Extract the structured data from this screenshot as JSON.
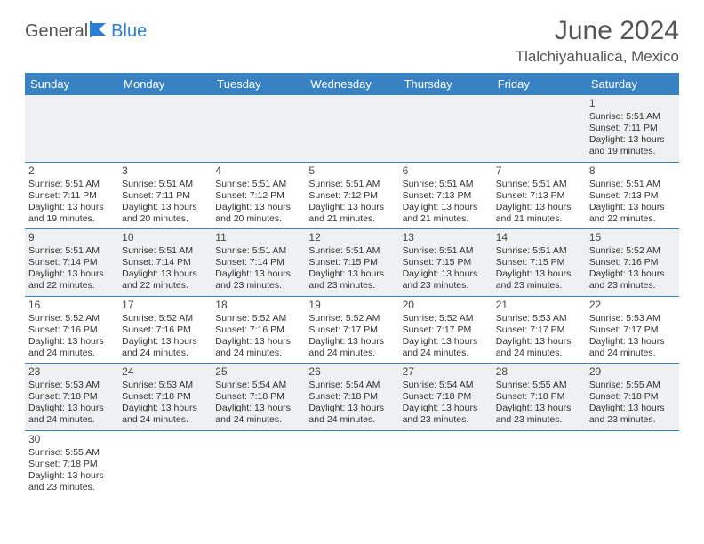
{
  "logo": {
    "part1": "General",
    "part2": "Blue"
  },
  "title": "June 2024",
  "location": "Tlalchiyahualica, Mexico",
  "colors": {
    "header_bg": "#3882c4",
    "header_text": "#ffffff",
    "row_alt_bg": "#eef0f1",
    "border": "#3882c4",
    "logo_accent": "#2a7fd4",
    "text": "#333333"
  },
  "daysOfWeek": [
    "Sunday",
    "Monday",
    "Tuesday",
    "Wednesday",
    "Thursday",
    "Friday",
    "Saturday"
  ],
  "weeks": [
    [
      null,
      null,
      null,
      null,
      null,
      null,
      {
        "n": "1",
        "sr": "Sunrise: 5:51 AM",
        "ss": "Sunset: 7:11 PM",
        "d1": "Daylight: 13 hours",
        "d2": "and 19 minutes."
      }
    ],
    [
      {
        "n": "2",
        "sr": "Sunrise: 5:51 AM",
        "ss": "Sunset: 7:11 PM",
        "d1": "Daylight: 13 hours",
        "d2": "and 19 minutes."
      },
      {
        "n": "3",
        "sr": "Sunrise: 5:51 AM",
        "ss": "Sunset: 7:11 PM",
        "d1": "Daylight: 13 hours",
        "d2": "and 20 minutes."
      },
      {
        "n": "4",
        "sr": "Sunrise: 5:51 AM",
        "ss": "Sunset: 7:12 PM",
        "d1": "Daylight: 13 hours",
        "d2": "and 20 minutes."
      },
      {
        "n": "5",
        "sr": "Sunrise: 5:51 AM",
        "ss": "Sunset: 7:12 PM",
        "d1": "Daylight: 13 hours",
        "d2": "and 21 minutes."
      },
      {
        "n": "6",
        "sr": "Sunrise: 5:51 AM",
        "ss": "Sunset: 7:13 PM",
        "d1": "Daylight: 13 hours",
        "d2": "and 21 minutes."
      },
      {
        "n": "7",
        "sr": "Sunrise: 5:51 AM",
        "ss": "Sunset: 7:13 PM",
        "d1": "Daylight: 13 hours",
        "d2": "and 21 minutes."
      },
      {
        "n": "8",
        "sr": "Sunrise: 5:51 AM",
        "ss": "Sunset: 7:13 PM",
        "d1": "Daylight: 13 hours",
        "d2": "and 22 minutes."
      }
    ],
    [
      {
        "n": "9",
        "sr": "Sunrise: 5:51 AM",
        "ss": "Sunset: 7:14 PM",
        "d1": "Daylight: 13 hours",
        "d2": "and 22 minutes."
      },
      {
        "n": "10",
        "sr": "Sunrise: 5:51 AM",
        "ss": "Sunset: 7:14 PM",
        "d1": "Daylight: 13 hours",
        "d2": "and 22 minutes."
      },
      {
        "n": "11",
        "sr": "Sunrise: 5:51 AM",
        "ss": "Sunset: 7:14 PM",
        "d1": "Daylight: 13 hours",
        "d2": "and 23 minutes."
      },
      {
        "n": "12",
        "sr": "Sunrise: 5:51 AM",
        "ss": "Sunset: 7:15 PM",
        "d1": "Daylight: 13 hours",
        "d2": "and 23 minutes."
      },
      {
        "n": "13",
        "sr": "Sunrise: 5:51 AM",
        "ss": "Sunset: 7:15 PM",
        "d1": "Daylight: 13 hours",
        "d2": "and 23 minutes."
      },
      {
        "n": "14",
        "sr": "Sunrise: 5:51 AM",
        "ss": "Sunset: 7:15 PM",
        "d1": "Daylight: 13 hours",
        "d2": "and 23 minutes."
      },
      {
        "n": "15",
        "sr": "Sunrise: 5:52 AM",
        "ss": "Sunset: 7:16 PM",
        "d1": "Daylight: 13 hours",
        "d2": "and 23 minutes."
      }
    ],
    [
      {
        "n": "16",
        "sr": "Sunrise: 5:52 AM",
        "ss": "Sunset: 7:16 PM",
        "d1": "Daylight: 13 hours",
        "d2": "and 24 minutes."
      },
      {
        "n": "17",
        "sr": "Sunrise: 5:52 AM",
        "ss": "Sunset: 7:16 PM",
        "d1": "Daylight: 13 hours",
        "d2": "and 24 minutes."
      },
      {
        "n": "18",
        "sr": "Sunrise: 5:52 AM",
        "ss": "Sunset: 7:16 PM",
        "d1": "Daylight: 13 hours",
        "d2": "and 24 minutes."
      },
      {
        "n": "19",
        "sr": "Sunrise: 5:52 AM",
        "ss": "Sunset: 7:17 PM",
        "d1": "Daylight: 13 hours",
        "d2": "and 24 minutes."
      },
      {
        "n": "20",
        "sr": "Sunrise: 5:52 AM",
        "ss": "Sunset: 7:17 PM",
        "d1": "Daylight: 13 hours",
        "d2": "and 24 minutes."
      },
      {
        "n": "21",
        "sr": "Sunrise: 5:53 AM",
        "ss": "Sunset: 7:17 PM",
        "d1": "Daylight: 13 hours",
        "d2": "and 24 minutes."
      },
      {
        "n": "22",
        "sr": "Sunrise: 5:53 AM",
        "ss": "Sunset: 7:17 PM",
        "d1": "Daylight: 13 hours",
        "d2": "and 24 minutes."
      }
    ],
    [
      {
        "n": "23",
        "sr": "Sunrise: 5:53 AM",
        "ss": "Sunset: 7:18 PM",
        "d1": "Daylight: 13 hours",
        "d2": "and 24 minutes."
      },
      {
        "n": "24",
        "sr": "Sunrise: 5:53 AM",
        "ss": "Sunset: 7:18 PM",
        "d1": "Daylight: 13 hours",
        "d2": "and 24 minutes."
      },
      {
        "n": "25",
        "sr": "Sunrise: 5:54 AM",
        "ss": "Sunset: 7:18 PM",
        "d1": "Daylight: 13 hours",
        "d2": "and 24 minutes."
      },
      {
        "n": "26",
        "sr": "Sunrise: 5:54 AM",
        "ss": "Sunset: 7:18 PM",
        "d1": "Daylight: 13 hours",
        "d2": "and 24 minutes."
      },
      {
        "n": "27",
        "sr": "Sunrise: 5:54 AM",
        "ss": "Sunset: 7:18 PM",
        "d1": "Daylight: 13 hours",
        "d2": "and 23 minutes."
      },
      {
        "n": "28",
        "sr": "Sunrise: 5:55 AM",
        "ss": "Sunset: 7:18 PM",
        "d1": "Daylight: 13 hours",
        "d2": "and 23 minutes."
      },
      {
        "n": "29",
        "sr": "Sunrise: 5:55 AM",
        "ss": "Sunset: 7:18 PM",
        "d1": "Daylight: 13 hours",
        "d2": "and 23 minutes."
      }
    ],
    [
      {
        "n": "30",
        "sr": "Sunrise: 5:55 AM",
        "ss": "Sunset: 7:18 PM",
        "d1": "Daylight: 13 hours",
        "d2": "and 23 minutes."
      },
      null,
      null,
      null,
      null,
      null,
      null
    ]
  ]
}
